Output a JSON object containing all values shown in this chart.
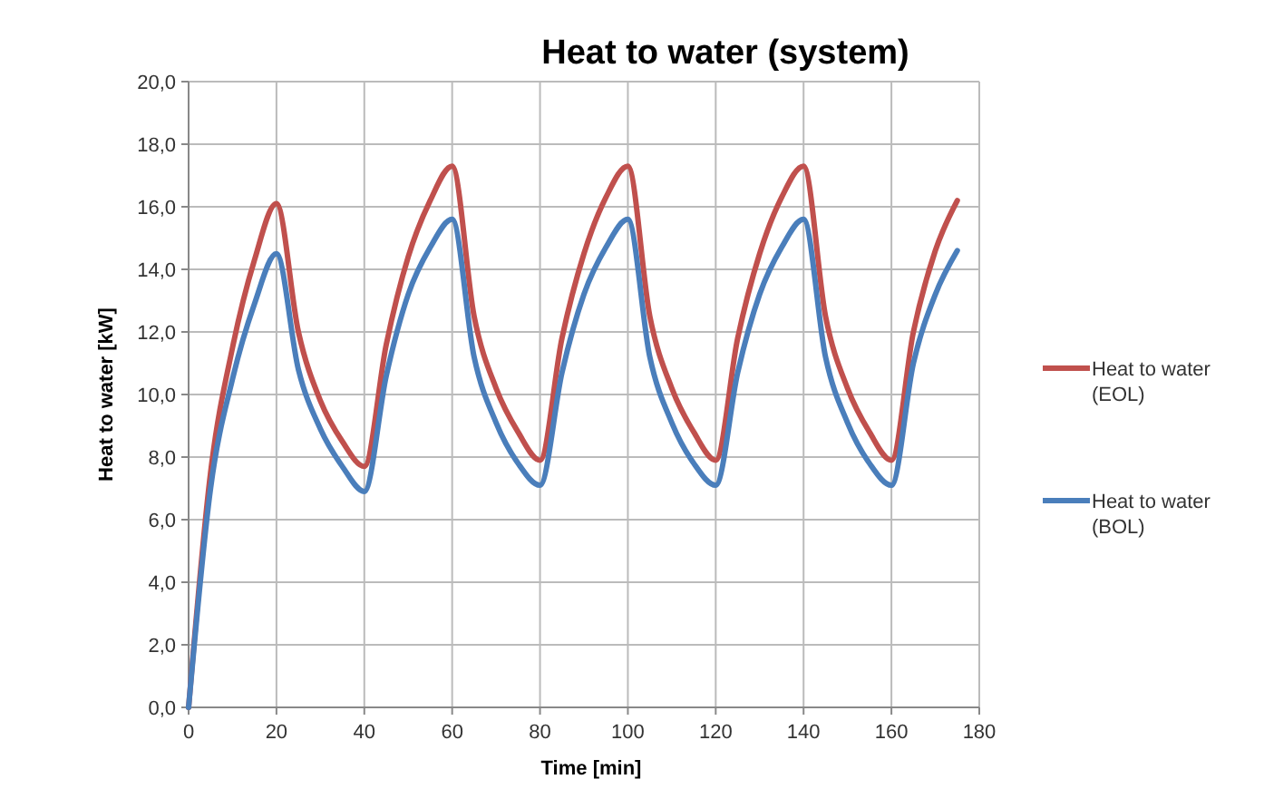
{
  "chart_data": {
    "type": "line",
    "title": "Heat to water (system)",
    "xlabel": "Time [min]",
    "ylabel": "Heat to water [kW]",
    "x": [
      0,
      5,
      10,
      15,
      20,
      25,
      30,
      35,
      40,
      45,
      50,
      55,
      60,
      65,
      70,
      75,
      80,
      85,
      90,
      95,
      100,
      105,
      110,
      115,
      120,
      125,
      130,
      135,
      140,
      145,
      150,
      155,
      160,
      165,
      170,
      175
    ],
    "series": [
      {
        "name": "Heat to water (EOL)",
        "color": "#c0504d",
        "values": [
          0,
          7.5,
          11.5,
          14.3,
          16.1,
          12.0,
          9.8,
          8.5,
          7.7,
          11.6,
          14.4,
          16.2,
          17.3,
          12.5,
          10.2,
          8.8,
          7.9,
          11.8,
          14.5,
          16.3,
          17.3,
          12.5,
          10.2,
          8.8,
          7.9,
          11.8,
          14.5,
          16.3,
          17.3,
          12.5,
          10.2,
          8.8,
          7.9,
          12.0,
          14.6,
          16.2
        ]
      },
      {
        "name": "Heat to water (BOL)",
        "color": "#4a7ebb",
        "values": [
          0,
          7.0,
          10.5,
          12.9,
          14.5,
          10.8,
          8.9,
          7.7,
          6.9,
          10.6,
          13.2,
          14.7,
          15.6,
          11.2,
          9.1,
          7.8,
          7.1,
          10.7,
          13.2,
          14.7,
          15.6,
          11.2,
          9.1,
          7.8,
          7.1,
          10.7,
          13.2,
          14.7,
          15.6,
          11.2,
          9.1,
          7.8,
          7.1,
          11.0,
          13.2,
          14.6
        ]
      }
    ],
    "xlim": [
      0,
      180
    ],
    "xticks": [
      0,
      20,
      40,
      60,
      80,
      100,
      120,
      140,
      160,
      180
    ],
    "ylim": [
      0,
      20
    ],
    "yticks": [
      {
        "value": 0,
        "label": "0,0"
      },
      {
        "value": 2,
        "label": "2,0"
      },
      {
        "value": 4,
        "label": "4,0"
      },
      {
        "value": 6,
        "label": "6,0"
      },
      {
        "value": 8,
        "label": "8,0"
      },
      {
        "value": 10,
        "label": "10,0"
      },
      {
        "value": 12,
        "label": "12,0"
      },
      {
        "value": 14,
        "label": "14,0"
      },
      {
        "value": 16,
        "label": "16,0"
      },
      {
        "value": 18,
        "label": "18,0"
      },
      {
        "value": 20,
        "label": "20,0"
      }
    ],
    "grid": true,
    "legend": "right",
    "marker": "none",
    "line_style": "solid"
  }
}
